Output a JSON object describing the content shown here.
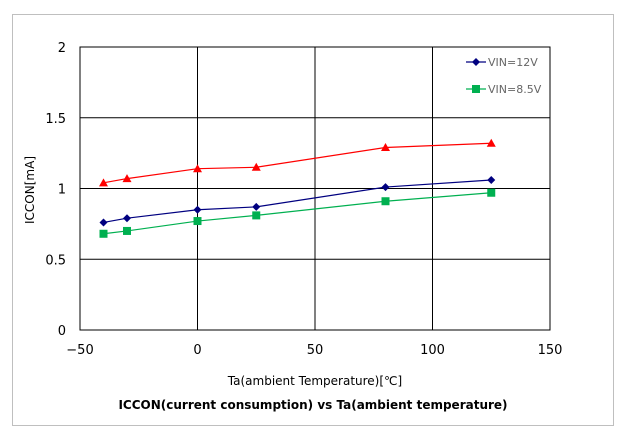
{
  "chart_data": {
    "type": "line",
    "title": "ICCON(current consumption) vs Ta(ambient temperature)",
    "xlabel": "Ta(ambient Temperature)[℃]",
    "ylabel": "ICCON[mA]",
    "xlim": [
      -50,
      150
    ],
    "ylim": [
      0,
      2
    ],
    "xticks": [
      -50,
      0,
      50,
      100,
      150
    ],
    "yticks": [
      0,
      0.5,
      1,
      1.5,
      2
    ],
    "xtick_labels": [
      "−50",
      "0",
      "50",
      "100",
      "150"
    ],
    "ytick_labels": [
      "0",
      "0.5",
      "1",
      "1.5",
      "2"
    ],
    "grid": true,
    "legend_position": "top-right",
    "series": [
      {
        "name": "VIN=12V",
        "color": "#000080",
        "marker": "diamond",
        "x": [
          -40,
          -30,
          0,
          25,
          80,
          125
        ],
        "y": [
          0.76,
          0.79,
          0.85,
          0.87,
          1.01,
          1.06
        ]
      },
      {
        "name": "VIN=8.5V",
        "color": "#00b050",
        "marker": "square",
        "x": [
          -40,
          -30,
          0,
          25,
          80,
          125
        ],
        "y": [
          0.68,
          0.7,
          0.77,
          0.81,
          0.91,
          0.97
        ]
      },
      {
        "name": "",
        "color": "#ff0000",
        "marker": "triangle",
        "x": [
          -40,
          -30,
          0,
          25,
          80,
          125
        ],
        "y": [
          1.04,
          1.07,
          1.14,
          1.15,
          1.29,
          1.32
        ]
      }
    ]
  }
}
